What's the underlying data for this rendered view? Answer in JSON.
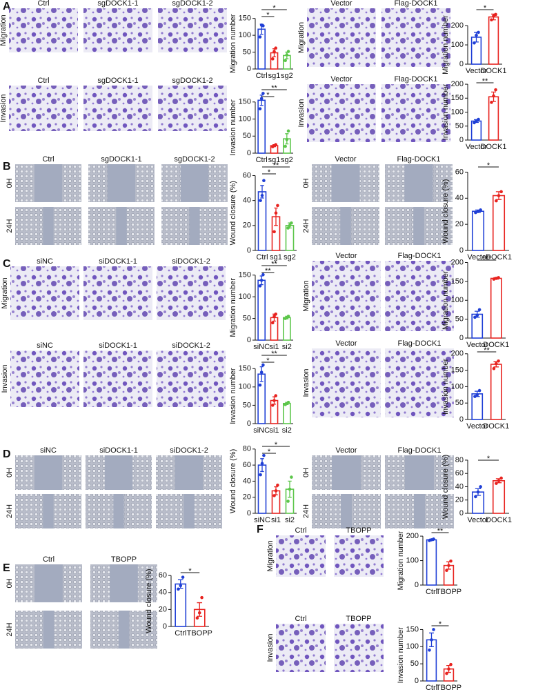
{
  "panel_letters": [
    "A",
    "B",
    "C",
    "D",
    "E",
    "F"
  ],
  "image_panels": [
    {
      "columns": [
        "Ctrl",
        "sgDOCK1-1",
        "sgDOCK1-2"
      ],
      "rows": [
        "Migration"
      ]
    },
    {
      "columns": [
        "Vector",
        "Flag-DOCK1"
      ],
      "rows": [
        "Migration"
      ]
    },
    {
      "columns": [
        "Ctrl",
        "sgDOCK1-1",
        "sgDOCK1-2"
      ],
      "rows": [
        "Invasion"
      ]
    },
    {
      "columns": [
        "Vector",
        "Flag-DOCK1"
      ],
      "rows": [
        "Invasion"
      ]
    },
    {
      "columns": [
        "Ctrl",
        "sgDOCK1-1",
        "sgDOCK1-2"
      ],
      "rows": [
        "0H",
        "24H"
      ]
    },
    {
      "columns": [
        "Vector",
        "Flag-DOCK1"
      ],
      "rows": [
        "0H",
        "24H"
      ]
    },
    {
      "columns": [
        "siNC",
        "siDOCK1-1",
        "siDOCK1-2"
      ],
      "rows": [
        "Migration"
      ]
    },
    {
      "columns": [
        "Vector",
        "Flag-DOCK1"
      ],
      "rows": [
        "Migration"
      ]
    },
    {
      "columns": [
        "siNC",
        "siDOCK1-1",
        "siDOCK1-2"
      ],
      "rows": [
        "Invasion"
      ]
    },
    {
      "columns": [
        "Vector",
        "Flag-DOCK1"
      ],
      "rows": [
        "Invasion"
      ]
    },
    {
      "columns": [
        "siNC",
        "siDOCK1-1",
        "siDOCK1-2"
      ],
      "rows": [
        "0H",
        "24H"
      ]
    },
    {
      "columns": [
        "Vector",
        "Flag-DOCK1"
      ],
      "rows": [
        "0H",
        "24H"
      ]
    },
    {
      "columns": [
        "Ctrl",
        "TBOPP"
      ],
      "rows": [
        "0H",
        "24H"
      ]
    },
    {
      "columns": [
        "Ctrl",
        "TBOPP"
      ],
      "rows": [
        "Migration"
      ]
    },
    {
      "columns": [
        "Ctrl",
        "TBOPP"
      ],
      "rows": [
        "Invasion"
      ]
    }
  ],
  "chart_data": [
    {
      "type": "bar",
      "y_label": "Migration number",
      "categories": [
        "Ctrl",
        "sg1",
        "sg2"
      ],
      "colors": [
        "#1f3fd6",
        "#e8231f",
        "#5cc64a"
      ],
      "values": [
        118,
        48,
        40
      ],
      "errors": [
        15,
        12,
        10
      ],
      "points": [
        [
          95,
          130,
          128
        ],
        [
          30,
          52,
          62
        ],
        [
          25,
          42,
          52
        ]
      ],
      "ylim": [
        0,
        180
      ],
      "yticks": [
        0,
        50,
        100,
        150
      ],
      "significance": [
        "*",
        "*"
      ]
    },
    {
      "type": "bar",
      "y_label": "Migration number",
      "categories": [
        "Vector",
        "DOCK1"
      ],
      "colors": [
        "#1f3fd6",
        "#e8231f"
      ],
      "values": [
        140,
        245
      ],
      "errors": [
        25,
        15
      ],
      "points": [
        [
          110,
          150,
          165
        ],
        [
          230,
          250,
          258
        ]
      ],
      "ylim": [
        0,
        290
      ],
      "yticks": [
        0,
        100,
        200
      ],
      "significance": [
        "*"
      ]
    },
    {
      "type": "bar",
      "y_label": "Invasion number",
      "categories": [
        "Ctrl",
        "sg1",
        "sg2"
      ],
      "colors": [
        "#1f3fd6",
        "#e8231f",
        "#5cc64a"
      ],
      "values": [
        155,
        22,
        42
      ],
      "errors": [
        15,
        3,
        15
      ],
      "points": [
        [
          130,
          160,
          175
        ],
        [
          19,
          22,
          25
        ],
        [
          20,
          40,
          65
        ]
      ],
      "ylim": [
        0,
        190
      ],
      "yticks": [
        0,
        50,
        100,
        150
      ],
      "significance": [
        "*",
        "**"
      ]
    },
    {
      "type": "bar",
      "y_label": "Invasion number",
      "categories": [
        "Vector",
        "DOCK1"
      ],
      "colors": [
        "#1f3fd6",
        "#e8231f"
      ],
      "values": [
        68,
        155
      ],
      "errors": [
        5,
        17
      ],
      "points": [
        [
          62,
          68,
          74
        ],
        [
          135,
          158,
          180
        ]
      ],
      "ylim": [
        0,
        210
      ],
      "yticks": [
        0,
        50,
        100,
        150,
        200
      ],
      "significance": [
        "**"
      ]
    },
    {
      "type": "bar",
      "y_label": "Wound closure (%)",
      "categories": [
        "Ctrl",
        "sg1",
        "sg2"
      ],
      "colors": [
        "#1f3fd6",
        "#e8231f",
        "#5cc64a"
      ],
      "values": [
        47,
        27,
        20
      ],
      "errors": [
        5,
        7,
        2
      ],
      "points": [
        [
          40,
          44,
          56
        ],
        [
          15,
          30,
          36
        ],
        [
          18,
          20,
          22
        ]
      ],
      "ylim": [
        0,
        68
      ],
      "yticks": [
        0,
        20,
        40,
        60
      ],
      "significance": [
        "*",
        "**"
      ]
    },
    {
      "type": "bar",
      "y_label": "Wound closure (%)",
      "categories": [
        "Vector",
        "DOCK1"
      ],
      "colors": [
        "#1f3fd6",
        "#e8231f"
      ],
      "values": [
        30,
        42
      ],
      "errors": [
        1,
        3
      ],
      "points": [
        [
          29,
          30,
          31
        ],
        [
          38,
          42,
          45
        ]
      ],
      "ylim": [
        0,
        65
      ],
      "yticks": [
        0,
        20,
        40,
        60
      ],
      "significance": [
        "*"
      ]
    },
    {
      "type": "bar",
      "y_label": "Migration number",
      "categories": [
        "siNC",
        "si1",
        "si2"
      ],
      "colors": [
        "#1f3fd6",
        "#e8231f",
        "#5cc64a"
      ],
      "values": [
        138,
        52,
        52
      ],
      "errors": [
        10,
        8,
        3
      ],
      "points": [
        [
          125,
          138,
          151
        ],
        [
          40,
          55,
          60
        ],
        [
          50,
          52,
          55
        ]
      ],
      "ylim": [
        0,
        175
      ],
      "yticks": [
        0,
        50,
        100,
        150
      ],
      "significance": [
        "**",
        "**"
      ]
    },
    {
      "type": "bar",
      "y_label": "Migration number",
      "categories": [
        "Vector",
        "DOCK1"
      ],
      "colors": [
        "#1f3fd6",
        "#e8231f"
      ],
      "values": [
        63,
        158
      ],
      "errors": [
        8,
        2
      ],
      "points": [
        [
          55,
          60,
          75
        ],
        [
          156,
          158,
          160
        ]
      ],
      "ylim": [
        0,
        210
      ],
      "yticks": [
        0,
        50,
        100,
        150,
        200
      ],
      "significance": [
        "***"
      ]
    },
    {
      "type": "bar",
      "y_label": "Invasion number",
      "categories": [
        "siNC",
        "si1",
        "si2"
      ],
      "colors": [
        "#1f3fd6",
        "#e8231f",
        "#5cc64a"
      ],
      "values": [
        135,
        63,
        55
      ],
      "errors": [
        20,
        10,
        3
      ],
      "points": [
        [
          105,
          140,
          160
        ],
        [
          50,
          63,
          76
        ],
        [
          52,
          55,
          58
        ]
      ],
      "ylim": [
        0,
        190
      ],
      "yticks": [
        0,
        50,
        100,
        150
      ],
      "significance": [
        "*",
        "**"
      ]
    },
    {
      "type": "bar",
      "y_label": "Invasion number",
      "categories": [
        "Vector",
        "DOCK1"
      ],
      "colors": [
        "#1f3fd6",
        "#e8231f"
      ],
      "values": [
        78,
        168
      ],
      "errors": [
        8,
        8
      ],
      "points": [
        [
          70,
          75,
          88
        ],
        [
          155,
          170,
          178
        ]
      ],
      "ylim": [
        0,
        210
      ],
      "yticks": [
        0,
        50,
        100,
        150,
        200
      ],
      "significance": [
        "**"
      ]
    },
    {
      "type": "bar",
      "y_label": "Wound closure (%)",
      "categories": [
        "siNC",
        "si1",
        "si2"
      ],
      "colors": [
        "#1f3fd6",
        "#e8231f",
        "#5cc64a"
      ],
      "values": [
        60,
        28,
        30
      ],
      "errors": [
        8,
        5,
        10
      ],
      "points": [
        [
          48,
          62,
          72
        ],
        [
          22,
          28,
          35
        ],
        [
          15,
          30,
          45
        ]
      ],
      "ylim": [
        0,
        85
      ],
      "yticks": [
        0,
        20,
        40,
        60,
        80
      ],
      "significance": [
        "*",
        "*"
      ]
    },
    {
      "type": "bar",
      "y_label": "Wound closure (%)",
      "categories": [
        "Vector",
        "DOCK1"
      ],
      "colors": [
        "#1f3fd6",
        "#e8231f"
      ],
      "values": [
        32,
        49
      ],
      "errors": [
        5,
        3
      ],
      "points": [
        [
          25,
          32,
          40
        ],
        [
          45,
          49,
          53
        ]
      ],
      "ylim": [
        0,
        82
      ],
      "yticks": [
        0,
        20,
        40,
        60,
        80
      ],
      "significance": [
        "*"
      ]
    },
    {
      "type": "bar",
      "y_label": "Wound closure (%)",
      "categories": [
        "Ctrl",
        "TBOPP"
      ],
      "colors": [
        "#1f3fd6",
        "#e8231f"
      ],
      "values": [
        50,
        20
      ],
      "errors": [
        5,
        8
      ],
      "points": [
        [
          44,
          48,
          58
        ],
        [
          10,
          16,
          34
        ]
      ],
      "ylim": [
        0,
        65
      ],
      "yticks": [
        0,
        20,
        40,
        60
      ],
      "significance": [
        "*"
      ]
    },
    {
      "type": "bar",
      "y_label": "Migration number",
      "categories": [
        "Ctrl",
        "TBOPP"
      ],
      "colors": [
        "#1f3fd6",
        "#e8231f"
      ],
      "values": [
        185,
        80
      ],
      "errors": [
        3,
        15
      ],
      "points": [
        [
          182,
          185,
          188
        ],
        [
          60,
          80,
          98
        ]
      ],
      "ylim": [
        0,
        220
      ],
      "yticks": [
        0,
        100,
        200
      ],
      "significance": [
        "**"
      ]
    },
    {
      "type": "bar",
      "y_label": "Invasion number",
      "categories": [
        "Ctrl",
        "TBOPP"
      ],
      "colors": [
        "#1f3fd6",
        "#e8231f"
      ],
      "values": [
        120,
        35
      ],
      "errors": [
        20,
        10
      ],
      "points": [
        [
          90,
          120,
          150
        ],
        [
          22,
          35,
          48
        ]
      ],
      "ylim": [
        0,
        165
      ],
      "yticks": [
        0,
        50,
        100,
        150
      ],
      "significance": [
        "*"
      ]
    }
  ]
}
